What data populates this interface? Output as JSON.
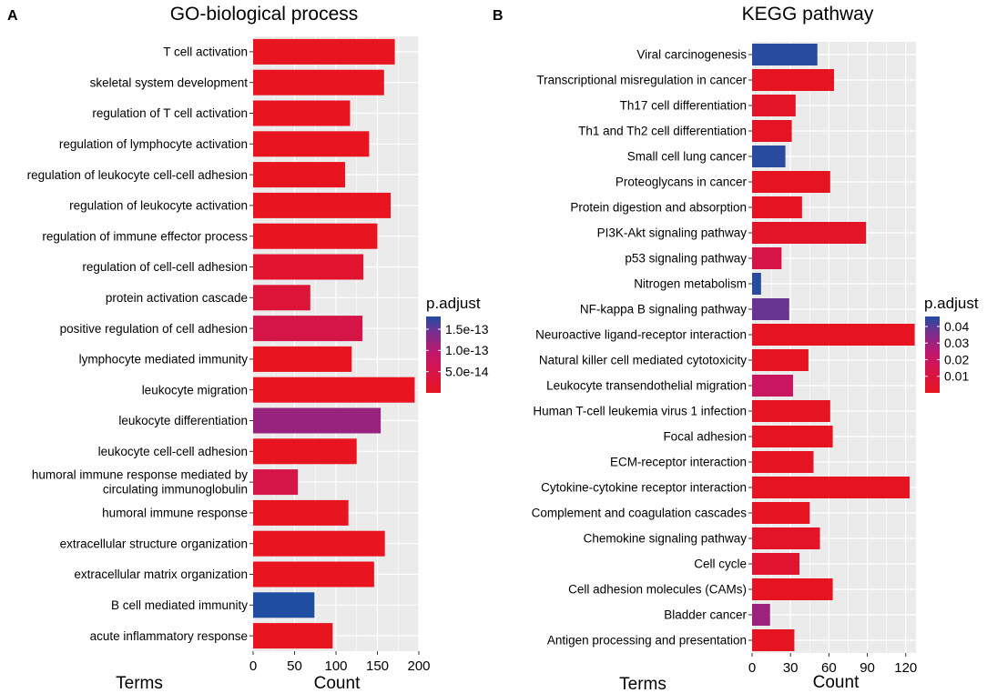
{
  "chart_data": [
    {
      "panel_label": "A",
      "type": "bar",
      "orientation": "horizontal",
      "title": "GO-biological process",
      "xlabel": "Count",
      "ylabel": "Terms",
      "xlim": [
        0,
        200
      ],
      "x_ticks": [
        0,
        50,
        100,
        150,
        200
      ],
      "grid": true,
      "categories": [
        "T cell activation",
        "skeletal system development",
        "regulation of T cell activation",
        "regulation of lymphocyte activation",
        "regulation of leukocyte cell-cell adhesion",
        "regulation of leukocyte activation",
        "regulation of immune effector process",
        "regulation of cell-cell adhesion",
        "protein activation cascade",
        "positive regulation of cell adhesion",
        "lymphocyte mediated immunity",
        "leukocyte migration",
        "leukocyte differentiation",
        "leukocyte cell-cell adhesion",
        "humoral immune response mediated by circulating immunoglobulin",
        "humoral immune response",
        "extracellular structure organization",
        "extracellular matrix organization",
        "B cell mediated immunity",
        "acute inflammatory response"
      ],
      "values": [
        171,
        158,
        117,
        140,
        111,
        166,
        150,
        133,
        69,
        132,
        119,
        195,
        154,
        125,
        54,
        115,
        159,
        146,
        74,
        96
      ],
      "p_adjust": [
        1e-15,
        1e-15,
        1e-15,
        1e-15,
        1e-15,
        1e-15,
        1e-15,
        2e-14,
        3e-14,
        5e-14,
        1e-15,
        1e-15,
        1.2e-13,
        1e-15,
        5e-14,
        1e-15,
        1e-15,
        1e-15,
        1.8e-13,
        1e-15
      ],
      "legend": {
        "title": "p.adjust",
        "position": "right",
        "min": 0,
        "max": 1.8e-13,
        "tick_values": [
          1.5e-13,
          1e-13,
          5e-14
        ],
        "tick_labels": [
          "1.5e-13",
          "1.0e-13",
          "5.0e-14"
        ],
        "low_color": "#e8141e",
        "high_color": "#1f4ea1"
      }
    },
    {
      "panel_label": "B",
      "type": "bar",
      "orientation": "horizontal",
      "title": "KEGG pathway",
      "xlabel": "Count",
      "ylabel": "Terms",
      "xlim": [
        0,
        128
      ],
      "x_ticks": [
        0,
        30,
        60,
        90,
        120
      ],
      "grid": true,
      "categories": [
        "Viral carcinogenesis",
        "Transcriptional misregulation in cancer",
        "Th17 cell differentiation",
        "Th1 and Th2 cell differentiation",
        "Small cell lung cancer",
        "Proteoglycans in cancer",
        "Protein digestion and absorption",
        "PI3K-Akt signaling pathway",
        "p53 signaling pathway",
        "Nitrogen metabolism",
        "NF-kappa B signaling pathway",
        "Neuroactive ligand-receptor interaction",
        "Natural killer cell mediated cytotoxicity",
        "Leukocyte transendothelial migration",
        "Human T-cell leukemia virus 1 infection",
        "Focal adhesion",
        "ECM-receptor interaction",
        "Cytokine-cytokine receptor interaction",
        "Complement and coagulation cascades",
        "Chemokine signaling pathway",
        "Cell cycle",
        "Cell adhesion molecules (CAMs)",
        "Bladder cancer",
        "Antigen processing and presentation"
      ],
      "values": [
        51,
        64,
        34,
        31,
        26,
        61,
        39,
        89,
        23,
        7,
        29,
        127,
        44,
        32,
        61,
        63,
        48,
        123,
        45,
        53,
        37,
        63,
        14,
        33
      ],
      "p_adjust": [
        0.045,
        0.001,
        0.003,
        0.002,
        0.045,
        0.001,
        0.001,
        0.003,
        0.012,
        0.045,
        0.038,
        0.001,
        0.001,
        0.02,
        0.001,
        0.001,
        0.001,
        0.001,
        0.001,
        0.003,
        0.005,
        0.001,
        0.03,
        0.001
      ],
      "legend": {
        "title": "p.adjust",
        "position": "right",
        "min": 0,
        "max": 0.046,
        "tick_values": [
          0.04,
          0.03,
          0.02,
          0.01
        ],
        "tick_labels": [
          "0.04",
          "0.03",
          "0.02",
          "0.01"
        ],
        "low_color": "#e8141e",
        "high_color": "#1f4ea1"
      }
    }
  ]
}
